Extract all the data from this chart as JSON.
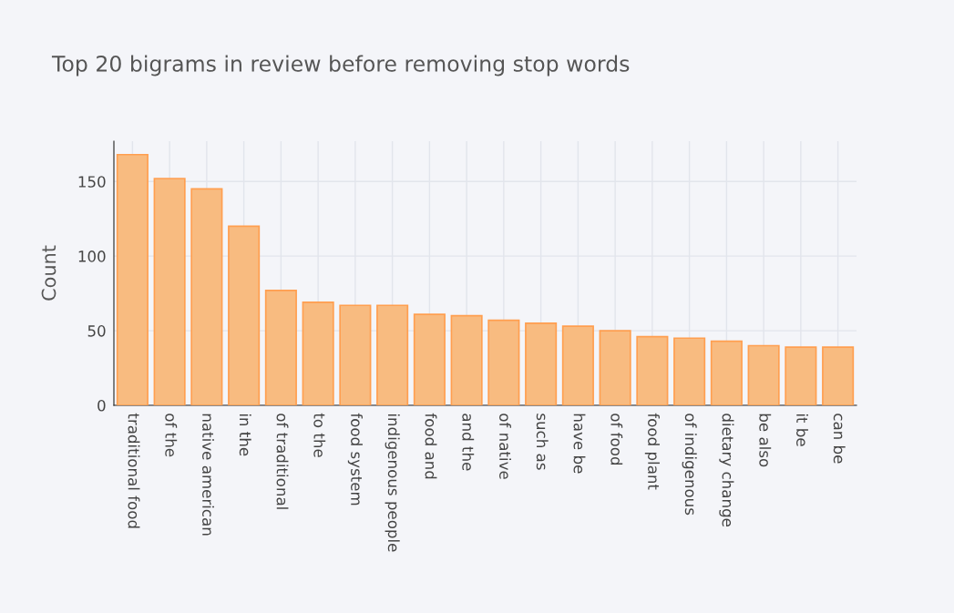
{
  "chart_data": {
    "type": "bar",
    "title": "Top 20 bigrams in review before removing stop words",
    "ylabel": "Count",
    "categories": [
      "traditional food",
      "of the",
      "native american",
      "in the",
      "of traditional",
      "to the",
      "food system",
      "indigenous people",
      "food and",
      "and the",
      "of native",
      "such as",
      "have be",
      "of food",
      "food plant",
      "of indigenous",
      "dietary change",
      "be also",
      "it be",
      "can be"
    ],
    "values": [
      168,
      152,
      145,
      120,
      77,
      69,
      67,
      67,
      61,
      60,
      57,
      55,
      53,
      50,
      46,
      45,
      43,
      40,
      39,
      39
    ],
    "color": "#f8bb80",
    "ylim": [
      0,
      177
    ],
    "yticks": [
      0,
      50,
      100,
      150
    ],
    "grid": true
  }
}
